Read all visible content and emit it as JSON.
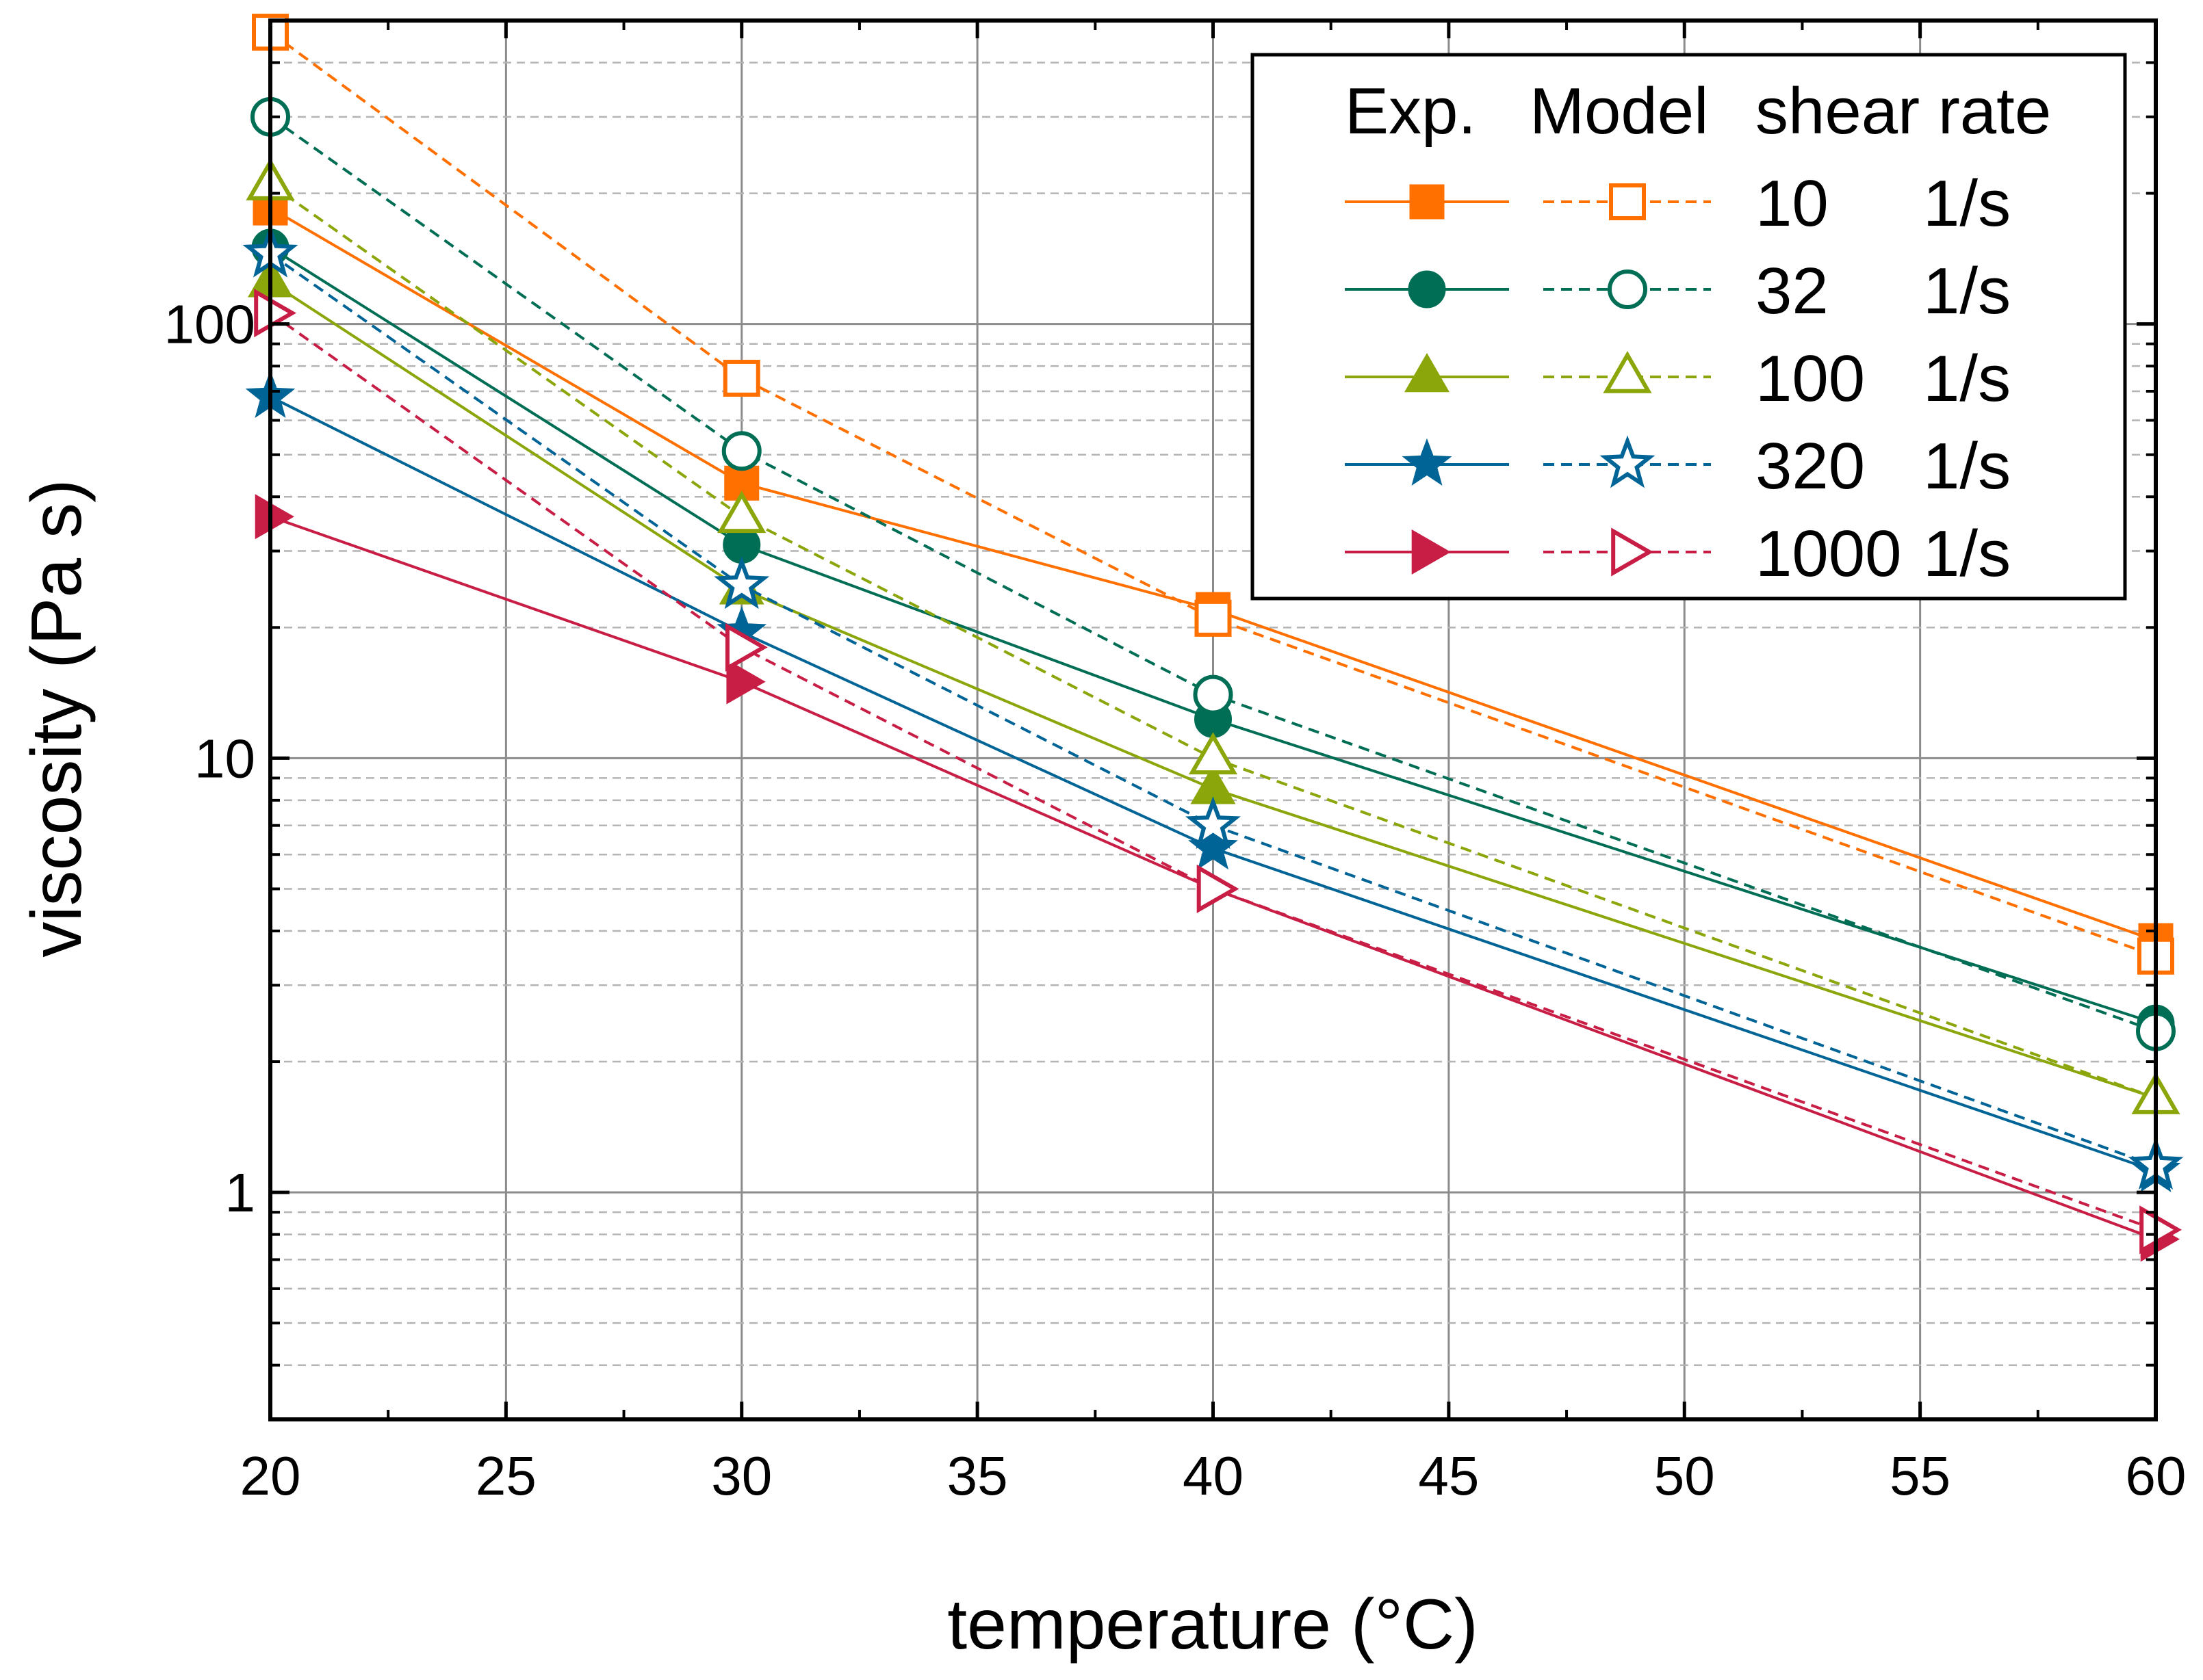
{
  "chart_data": {
    "type": "line",
    "xlabel": "temperature (°C)",
    "ylabel": "viscosity (Pa s)",
    "xlim": [
      20,
      60
    ],
    "ylim": [
      0.3,
      500
    ],
    "yscale": "log",
    "grid": true,
    "legend_position": "top-right",
    "x_ticks": [
      "20",
      "25",
      "30",
      "35",
      "40",
      "45",
      "50",
      "55",
      "60"
    ],
    "y_ticks": [
      "1",
      "10",
      "100"
    ],
    "x": [
      20,
      30,
      40,
      60
    ],
    "legend": {
      "header_exp": "Exp.",
      "header_model": "Model",
      "header_rate": "shear rate",
      "unit": "1/s"
    },
    "series": [
      {
        "name": "10",
        "color": "#FF7000",
        "marker": "square",
        "exp": [
          185,
          43,
          22,
          3.8
        ],
        "model": [
          470,
          75,
          21,
          3.5
        ]
      },
      {
        "name": "32",
        "color": "#006E55",
        "marker": "circle",
        "exp": [
          150,
          31,
          12.3,
          2.45
        ],
        "model": [
          300,
          51,
          14,
          2.35
        ]
      },
      {
        "name": "100",
        "color": "#8AA60A",
        "marker": "triangle",
        "exp": [
          125,
          24.5,
          8.5,
          1.65
        ],
        "model": [
          210,
          36,
          10,
          1.65
        ]
      },
      {
        "name": "320",
        "color": "#006496",
        "marker": "star",
        "exp": [
          68,
          19.5,
          6.2,
          1.12
        ],
        "model": [
          145,
          25,
          7,
          1.15
        ]
      },
      {
        "name": "1000",
        "color": "#C81E46",
        "marker": "triangle-right",
        "exp": [
          36,
          15,
          5,
          0.78
        ],
        "model": [
          106,
          18,
          5,
          0.82
        ]
      }
    ]
  }
}
